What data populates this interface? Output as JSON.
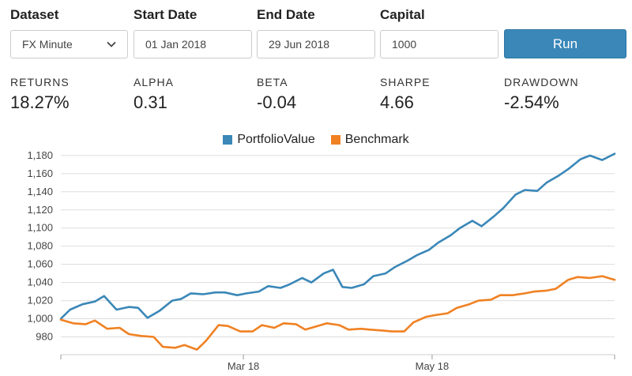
{
  "form": {
    "dataset_label": "Dataset",
    "dataset_value": "FX Minute",
    "start_label": "Start Date",
    "start_value": "01 Jan 2018",
    "end_label": "End Date",
    "end_value": "29 Jun 2018",
    "capital_label": "Capital",
    "capital_value": "1000",
    "run_label": "Run"
  },
  "stats": {
    "returns_label": "RETURNS",
    "returns_value": "18.27%",
    "alpha_label": "ALPHA",
    "alpha_value": "0.31",
    "beta_label": "BETA",
    "beta_value": "-0.04",
    "sharpe_label": "SHARPE",
    "sharpe_value": "4.66",
    "drawdown_label": "DRAWDOWN",
    "drawdown_value": "-2.54%"
  },
  "colors": {
    "portfolio": "#3a87b8",
    "benchmark": "#f08122",
    "accent": "#3a87b8"
  },
  "chart_data": {
    "type": "line",
    "title": "",
    "xlabel": "",
    "ylabel": "",
    "x_range": [
      "2018-01-01",
      "2018-06-29"
    ],
    "ylim": [
      963,
      1186
    ],
    "y_ticks": [
      "980",
      "1,000",
      "1,020",
      "1,040",
      "1,060",
      "1,080",
      "1,100",
      "1,120",
      "1,140",
      "1,160",
      "1,180"
    ],
    "y_tick_values": [
      980,
      1000,
      1020,
      1040,
      1060,
      1080,
      1100,
      1120,
      1140,
      1160,
      1180
    ],
    "x_ticks": [
      {
        "label": "Mar 18",
        "date": "2018-03-01"
      },
      {
        "label": "May 18",
        "date": "2018-05-01"
      }
    ],
    "legend_position": "top-center",
    "grid": true,
    "series": [
      {
        "name": "PortfolioValue",
        "points": [
          [
            "2018-01-01",
            1000
          ],
          [
            "2018-01-04",
            1010
          ],
          [
            "2018-01-08",
            1016
          ],
          [
            "2018-01-12",
            1019
          ],
          [
            "2018-01-15",
            1025
          ],
          [
            "2018-01-19",
            1010
          ],
          [
            "2018-01-23",
            1013
          ],
          [
            "2018-01-26",
            1012
          ],
          [
            "2018-01-29",
            1001
          ],
          [
            "2018-02-02",
            1009
          ],
          [
            "2018-02-06",
            1020
          ],
          [
            "2018-02-09",
            1022
          ],
          [
            "2018-02-12",
            1028
          ],
          [
            "2018-02-16",
            1027
          ],
          [
            "2018-02-20",
            1029
          ],
          [
            "2018-02-23",
            1029
          ],
          [
            "2018-02-27",
            1026
          ],
          [
            "2018-03-02",
            1028
          ],
          [
            "2018-03-06",
            1030
          ],
          [
            "2018-03-09",
            1036
          ],
          [
            "2018-03-13",
            1034
          ],
          [
            "2018-03-16",
            1038
          ],
          [
            "2018-03-20",
            1045
          ],
          [
            "2018-03-23",
            1040
          ],
          [
            "2018-03-27",
            1050
          ],
          [
            "2018-03-30",
            1054
          ],
          [
            "2018-04-02",
            1035
          ],
          [
            "2018-04-05",
            1034
          ],
          [
            "2018-04-09",
            1038
          ],
          [
            "2018-04-12",
            1047
          ],
          [
            "2018-04-16",
            1050
          ],
          [
            "2018-04-19",
            1057
          ],
          [
            "2018-04-23",
            1064
          ],
          [
            "2018-04-26",
            1070
          ],
          [
            "2018-04-30",
            1076
          ],
          [
            "2018-05-03",
            1084
          ],
          [
            "2018-05-07",
            1092
          ],
          [
            "2018-05-10",
            1100
          ],
          [
            "2018-05-14",
            1108
          ],
          [
            "2018-05-17",
            1102
          ],
          [
            "2018-05-21",
            1113
          ],
          [
            "2018-05-24",
            1122
          ],
          [
            "2018-05-28",
            1137
          ],
          [
            "2018-05-31",
            1142
          ],
          [
            "2018-06-04",
            1141
          ],
          [
            "2018-06-07",
            1150
          ],
          [
            "2018-06-11",
            1158
          ],
          [
            "2018-06-14",
            1165
          ],
          [
            "2018-06-18",
            1176
          ],
          [
            "2018-06-21",
            1180
          ],
          [
            "2018-06-25",
            1175
          ],
          [
            "2018-06-29",
            1182
          ]
        ]
      },
      {
        "name": "Benchmark",
        "points": [
          [
            "2018-01-01",
            999
          ],
          [
            "2018-01-05",
            995
          ],
          [
            "2018-01-09",
            994
          ],
          [
            "2018-01-12",
            998
          ],
          [
            "2018-01-16",
            989
          ],
          [
            "2018-01-20",
            990
          ],
          [
            "2018-01-23",
            983
          ],
          [
            "2018-01-27",
            981
          ],
          [
            "2018-01-31",
            980
          ],
          [
            "2018-02-03",
            969
          ],
          [
            "2018-02-07",
            968
          ],
          [
            "2018-02-10",
            971
          ],
          [
            "2018-02-14",
            966
          ],
          [
            "2018-02-17",
            976
          ],
          [
            "2018-02-21",
            993
          ],
          [
            "2018-02-24",
            992
          ],
          [
            "2018-02-28",
            986
          ],
          [
            "2018-03-04",
            986
          ],
          [
            "2018-03-07",
            993
          ],
          [
            "2018-03-11",
            990
          ],
          [
            "2018-03-14",
            995
          ],
          [
            "2018-03-18",
            994
          ],
          [
            "2018-03-21",
            988
          ],
          [
            "2018-03-25",
            992
          ],
          [
            "2018-03-28",
            995
          ],
          [
            "2018-04-01",
            993
          ],
          [
            "2018-04-04",
            988
          ],
          [
            "2018-04-08",
            989
          ],
          [
            "2018-04-11",
            988
          ],
          [
            "2018-04-15",
            987
          ],
          [
            "2018-04-18",
            986
          ],
          [
            "2018-04-22",
            986
          ],
          [
            "2018-04-25",
            996
          ],
          [
            "2018-04-29",
            1002
          ],
          [
            "2018-05-02",
            1004
          ],
          [
            "2018-05-06",
            1006
          ],
          [
            "2018-05-09",
            1012
          ],
          [
            "2018-05-13",
            1016
          ],
          [
            "2018-05-16",
            1020
          ],
          [
            "2018-05-20",
            1021
          ],
          [
            "2018-05-23",
            1026
          ],
          [
            "2018-05-27",
            1026
          ],
          [
            "2018-05-31",
            1028
          ],
          [
            "2018-06-03",
            1030
          ],
          [
            "2018-06-07",
            1031
          ],
          [
            "2018-06-10",
            1033
          ],
          [
            "2018-06-14",
            1043
          ],
          [
            "2018-06-17",
            1046
          ],
          [
            "2018-06-21",
            1045
          ],
          [
            "2018-06-25",
            1047
          ],
          [
            "2018-06-29",
            1043
          ]
        ]
      }
    ]
  }
}
